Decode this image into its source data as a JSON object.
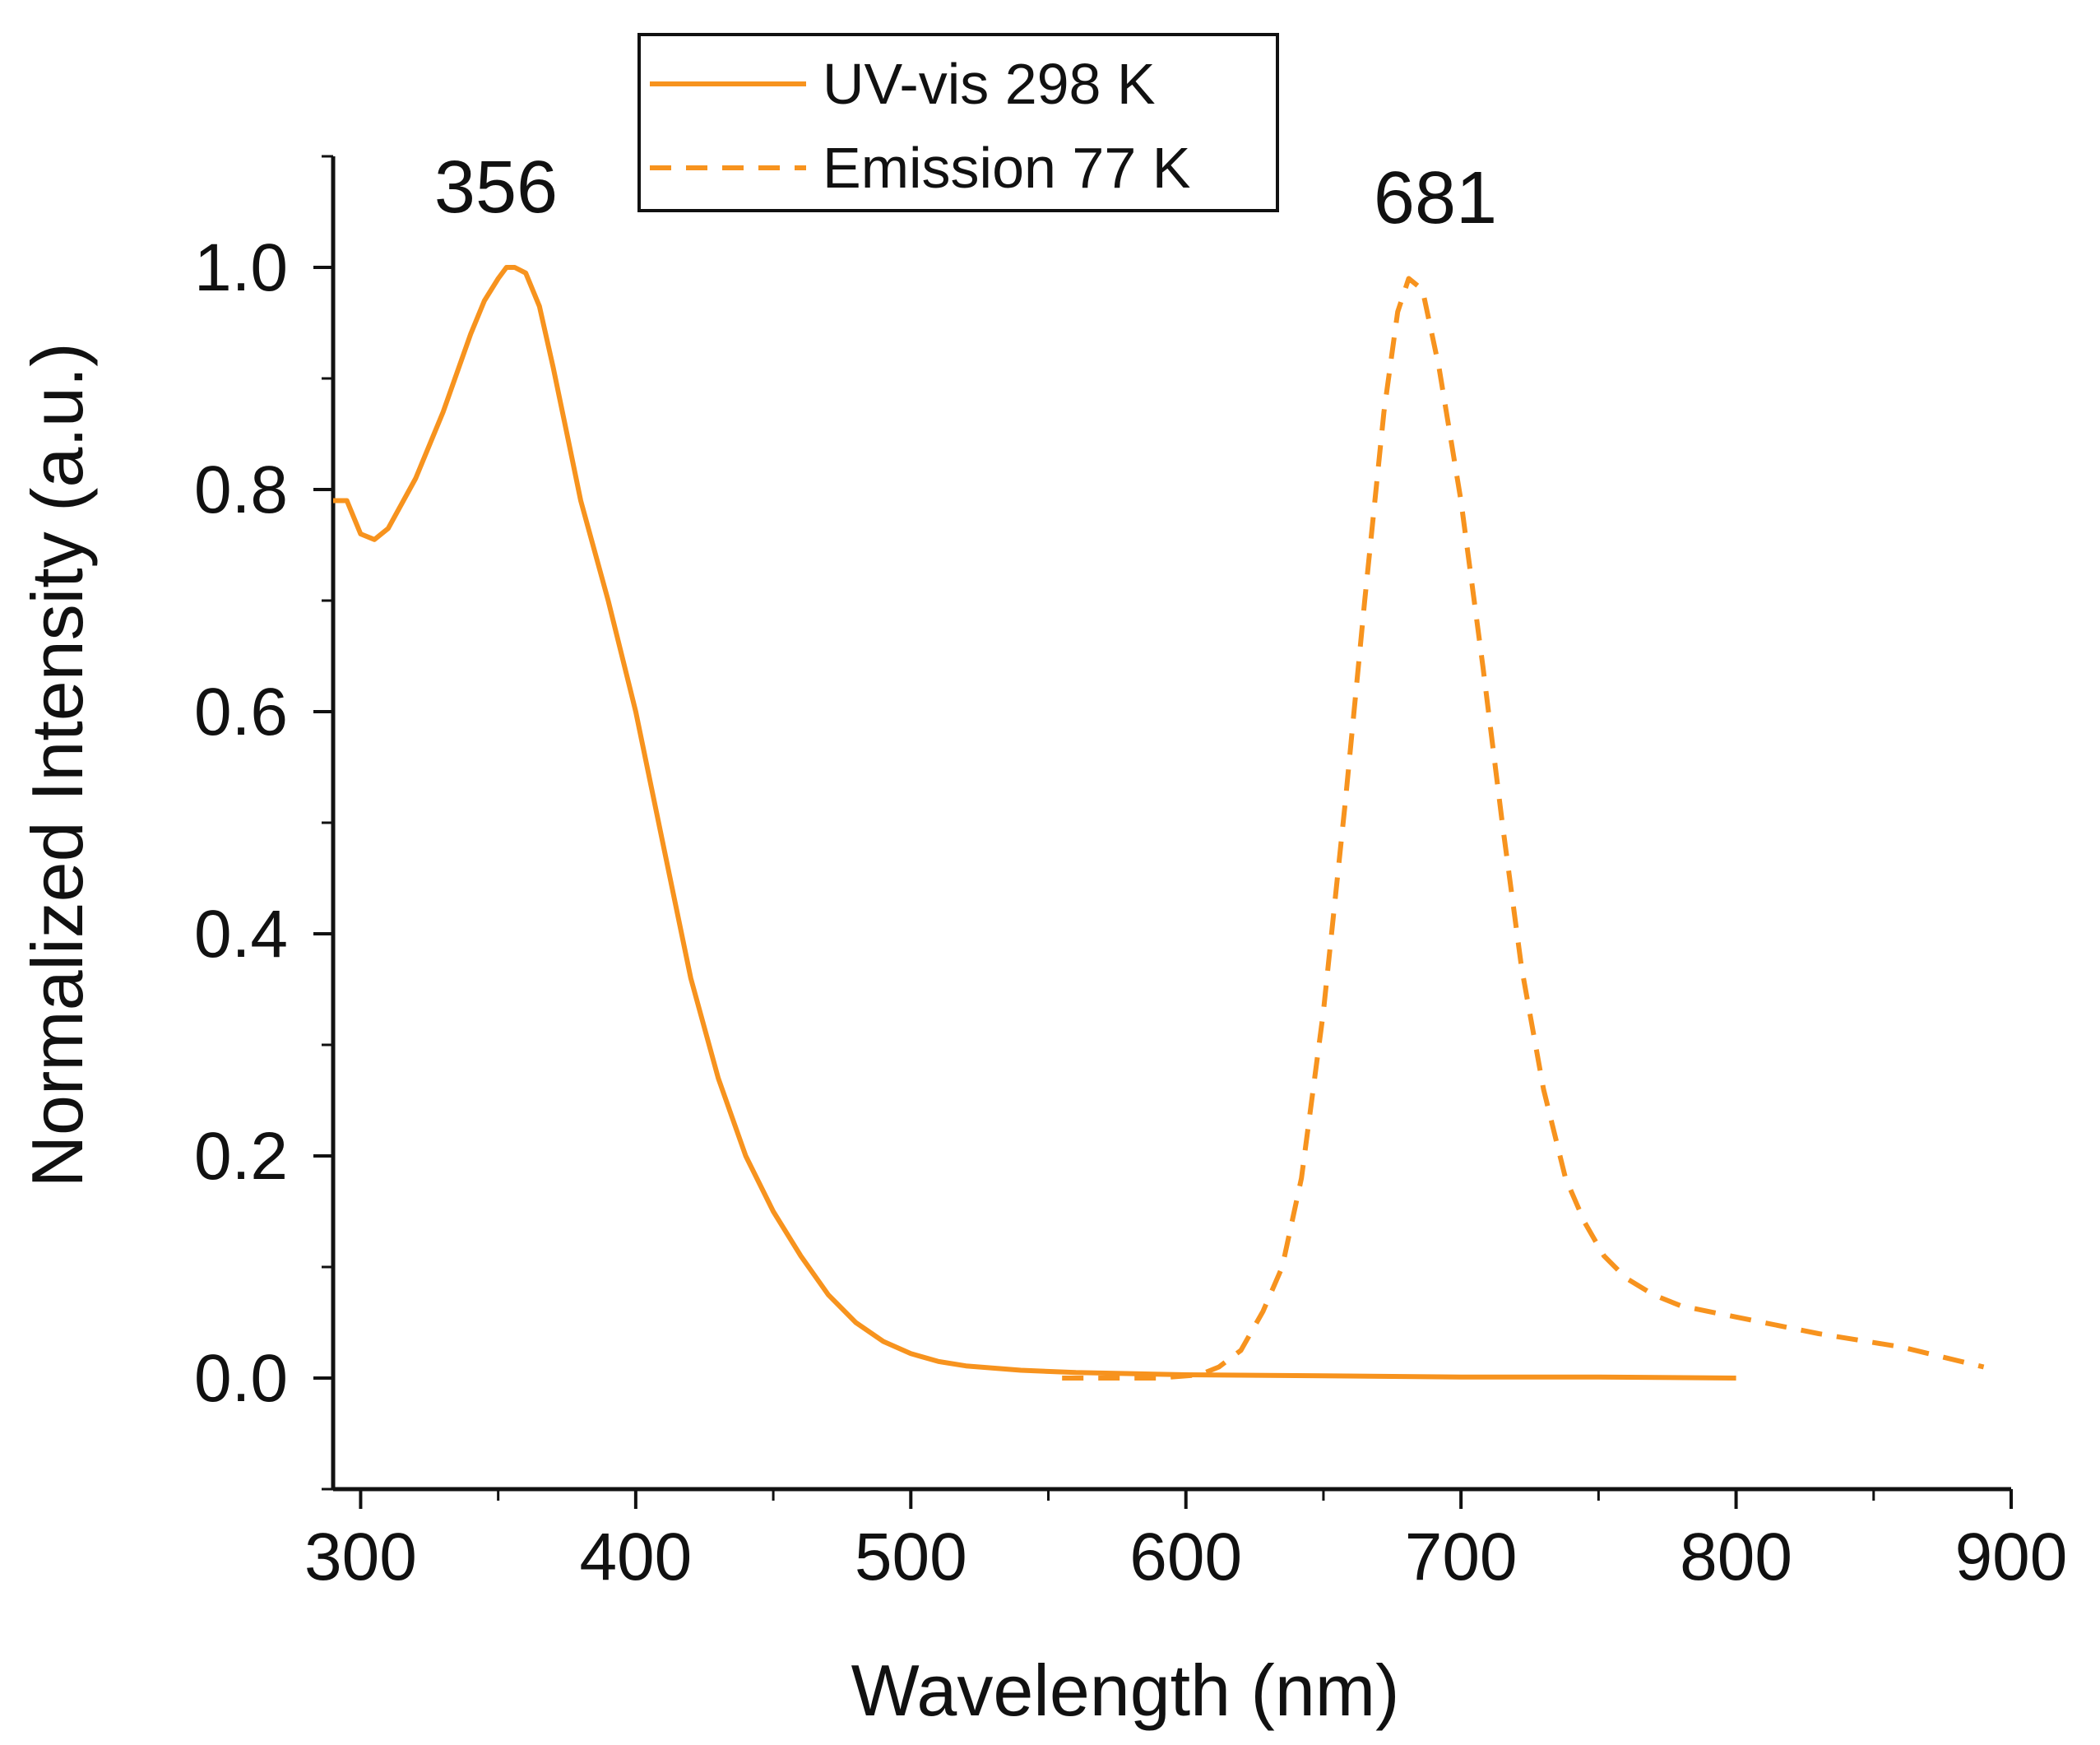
{
  "chart_data": {
    "type": "line",
    "title": "",
    "xlabel": "Wavelength (nm)",
    "ylabel": "Normalized Intensity (a.u.)",
    "xlim": [
      290,
      900
    ],
    "ylim": [
      -0.1,
      1.1
    ],
    "xticks": [
      300,
      400,
      500,
      600,
      700,
      800,
      900
    ],
    "xtick_labels": [
      "300",
      "400",
      "500",
      "600",
      "700",
      "800",
      "900"
    ],
    "yticks": [
      0.0,
      0.2,
      0.4,
      0.6,
      0.8,
      1.0
    ],
    "ytick_labels": [
      "0.0",
      "0.2",
      "0.4",
      "0.6",
      "0.8",
      "1.0"
    ],
    "legend_position": "top-center",
    "grid": false,
    "annotations": [
      {
        "text": "356",
        "x": 356,
        "y": 1.0
      },
      {
        "text": "681",
        "x": 681,
        "y": 0.99
      }
    ],
    "series": [
      {
        "name": "UV-vis 298 K",
        "style": "solid",
        "color": "#F7931E",
        "x": [
          290,
          295,
          300,
          305,
          310,
          320,
          330,
          340,
          345,
          350,
          353,
          356,
          360,
          365,
          370,
          375,
          380,
          390,
          400,
          410,
          420,
          430,
          440,
          450,
          460,
          470,
          480,
          490,
          500,
          510,
          520,
          540,
          560,
          580,
          600,
          650,
          700,
          750,
          800
        ],
        "values": [
          0.79,
          0.79,
          0.76,
          0.755,
          0.765,
          0.81,
          0.87,
          0.94,
          0.97,
          0.99,
          1.0,
          1.0,
          0.995,
          0.965,
          0.91,
          0.85,
          0.79,
          0.7,
          0.6,
          0.48,
          0.36,
          0.27,
          0.2,
          0.15,
          0.11,
          0.075,
          0.05,
          0.033,
          0.022,
          0.015,
          0.011,
          0.007,
          0.005,
          0.004,
          0.003,
          0.002,
          0.001,
          0.001,
          0.0
        ]
      },
      {
        "name": "Emission 77 K",
        "style": "dashed",
        "color": "#F7931E",
        "x": [
          555,
          570,
          590,
          605,
          612,
          620,
          628,
          635,
          642,
          650,
          658,
          665,
          672,
          677,
          681,
          686,
          692,
          700,
          708,
          715,
          722,
          730,
          738,
          745,
          752,
          760,
          770,
          780,
          800,
          830,
          860,
          890
        ],
        "values": [
          0.0,
          0.0,
          0.0,
          0.003,
          0.01,
          0.025,
          0.06,
          0.1,
          0.18,
          0.33,
          0.52,
          0.7,
          0.87,
          0.96,
          0.99,
          0.98,
          0.91,
          0.79,
          0.64,
          0.5,
          0.37,
          0.26,
          0.18,
          0.14,
          0.11,
          0.09,
          0.075,
          0.065,
          0.055,
          0.04,
          0.028,
          0.01
        ]
      }
    ]
  },
  "colors": {
    "series": "#F7931E",
    "axis": "#111111",
    "background": "#FFFFFF"
  }
}
